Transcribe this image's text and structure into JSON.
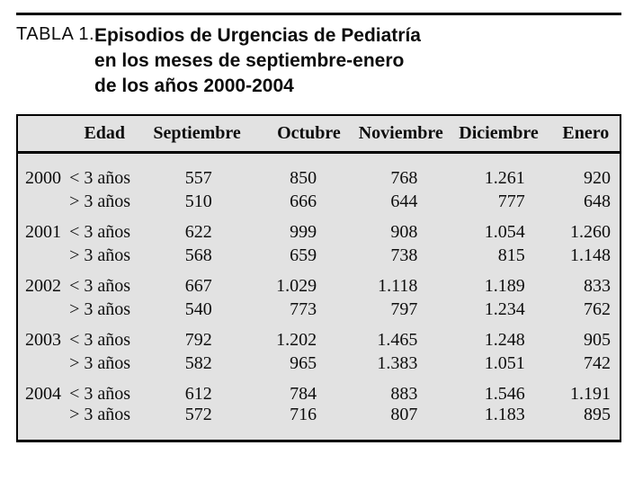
{
  "caption": {
    "label": "TABLA 1.",
    "title_lines": [
      "Episodios de Urgencias de Pediatría",
      "en los meses de septiembre-enero",
      "de los años 2000-2004"
    ]
  },
  "table": {
    "edad_header": "Edad",
    "month_headers": [
      "Septiembre",
      "Octubre",
      "Noviembre",
      "Diciembre",
      "Enero"
    ],
    "groups": [
      {
        "year": "2000",
        "rows": [
          {
            "edad": "< 3 años",
            "values": [
              "557",
              "850",
              "768",
              "1.261",
              "920"
            ]
          },
          {
            "edad": "> 3 años",
            "values": [
              "510",
              "666",
              "644",
              "777",
              "648"
            ]
          }
        ]
      },
      {
        "year": "2001",
        "rows": [
          {
            "edad": "< 3 años",
            "values": [
              "622",
              "999",
              "908",
              "1.054",
              "1.260"
            ]
          },
          {
            "edad": "> 3 años",
            "values": [
              "568",
              "659",
              "738",
              "815",
              "1.148"
            ]
          }
        ]
      },
      {
        "year": "2002",
        "rows": [
          {
            "edad": "< 3 años",
            "values": [
              "667",
              "1.029",
              "1.118",
              "1.189",
              "833"
            ]
          },
          {
            "edad": "> 3 años",
            "values": [
              "540",
              "773",
              "797",
              "1.234",
              "762"
            ]
          }
        ]
      },
      {
        "year": "2003",
        "rows": [
          {
            "edad": "< 3 años",
            "values": [
              "792",
              "1.202",
              "1.465",
              "1.248",
              "905"
            ]
          },
          {
            "edad": "> 3 años",
            "values": [
              "582",
              "965",
              "1.383",
              "1.051",
              "742"
            ]
          }
        ]
      },
      {
        "year": "2004",
        "rows": [
          {
            "edad": "< 3 años",
            "values": [
              "612",
              "784",
              "883",
              "1.546",
              "1.191"
            ]
          },
          {
            "edad": "> 3 años",
            "values": [
              "572",
              "716",
              "807",
              "1.183",
              "895"
            ]
          }
        ]
      }
    ]
  },
  "colors": {
    "table_background": "#e2e2e2",
    "border": "#000000",
    "text": "#0d0d0d"
  }
}
